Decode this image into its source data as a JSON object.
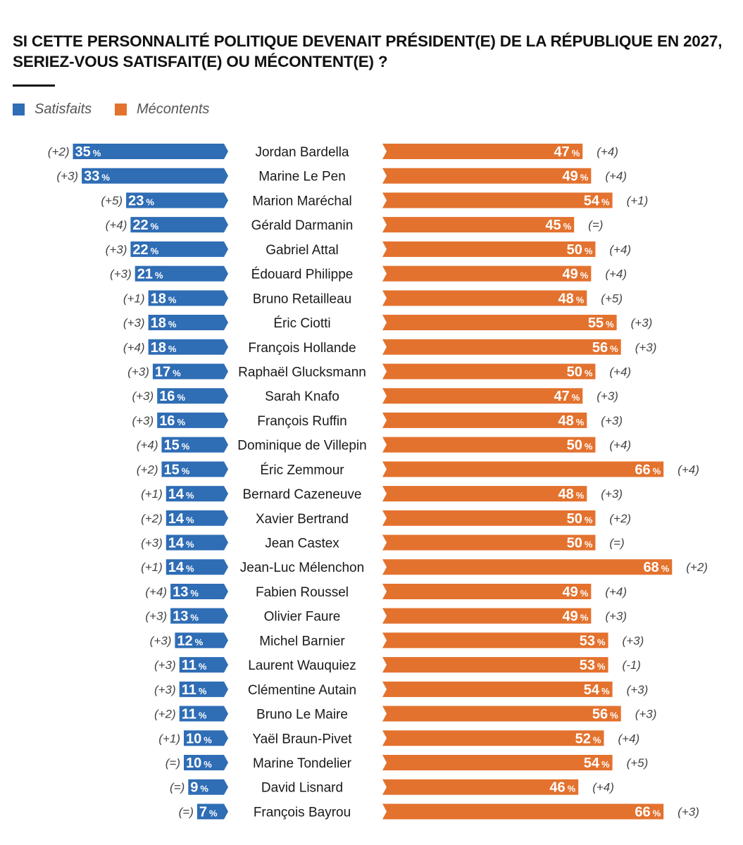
{
  "title": "SI CETTE PERSONNALITÉ POLITIQUE DEVENAIT PRÉSIDENT(E) DE LA RÉPUBLIQUE EN 2027, SERIEZ-VOUS SATISFAIT(E) OU MÉCONTENT(E) ?",
  "colors": {
    "satisfaits": "#2f6db5",
    "mecontents": "#e3722e"
  },
  "legend": {
    "satisfaits": "Satisfaits",
    "mecontents": "Mécontents"
  },
  "chart_data": {
    "type": "bar",
    "orientation": "horizontal-diverging",
    "unit": "%",
    "categories": [
      "Jordan Bardella",
      "Marine Le Pen",
      "Marion Maréchal",
      "Gérald Darmanin",
      "Gabriel Attal",
      "Édouard Philippe",
      "Bruno Retailleau",
      "Éric Ciotti",
      "François Hollande",
      "Raphaël Glucksmann",
      "Sarah Knafo",
      "François Ruffin",
      "Dominique de Villepin",
      "Éric Zemmour",
      "Bernard Cazeneuve",
      "Xavier Bertrand",
      "Jean Castex",
      "Jean-Luc Mélenchon",
      "Fabien Roussel",
      "Olivier Faure",
      "Michel Barnier",
      "Laurent Wauquiez",
      "Clémentine Autain",
      "Bruno Le Maire",
      "Yaël Braun-Pivet",
      "Marine Tondelier",
      "David Lisnard",
      "François Bayrou"
    ],
    "series": [
      {
        "name": "Satisfaits",
        "values": [
          35,
          33,
          23,
          22,
          22,
          21,
          18,
          18,
          18,
          17,
          16,
          16,
          15,
          15,
          14,
          14,
          14,
          14,
          13,
          13,
          12,
          11,
          11,
          11,
          10,
          10,
          9,
          7
        ],
        "changes": [
          "(+2)",
          "(+3)",
          "(+5)",
          "(+4)",
          "(+3)",
          "(+3)",
          "(+1)",
          "(+3)",
          "(+4)",
          "(+3)",
          "(+3)",
          "(+3)",
          "(+4)",
          "(+2)",
          "(+1)",
          "(+2)",
          "(+3)",
          "(+1)",
          "(+4)",
          "(+3)",
          "(+3)",
          "(+3)",
          "(+3)",
          "(+2)",
          "(+1)",
          "(=)",
          "(=)",
          "(=)"
        ]
      },
      {
        "name": "Mécontents",
        "values": [
          47,
          49,
          54,
          45,
          50,
          49,
          48,
          55,
          56,
          50,
          47,
          48,
          50,
          66,
          48,
          50,
          50,
          68,
          49,
          49,
          53,
          53,
          54,
          56,
          52,
          54,
          46,
          66
        ],
        "changes": [
          "(+4)",
          "(+4)",
          "(+1)",
          "(=)",
          "(+4)",
          "(+4)",
          "(+5)",
          "(+3)",
          "(+3)",
          "(+4)",
          "(+3)",
          "(+3)",
          "(+4)",
          "(+4)",
          "(+3)",
          "(+2)",
          "(=)",
          "(+2)",
          "(+4)",
          "(+3)",
          "(+3)",
          "(-1)",
          "(+3)",
          "(+3)",
          "(+4)",
          "(+5)",
          "(+4)",
          "(+3)"
        ]
      }
    ]
  }
}
